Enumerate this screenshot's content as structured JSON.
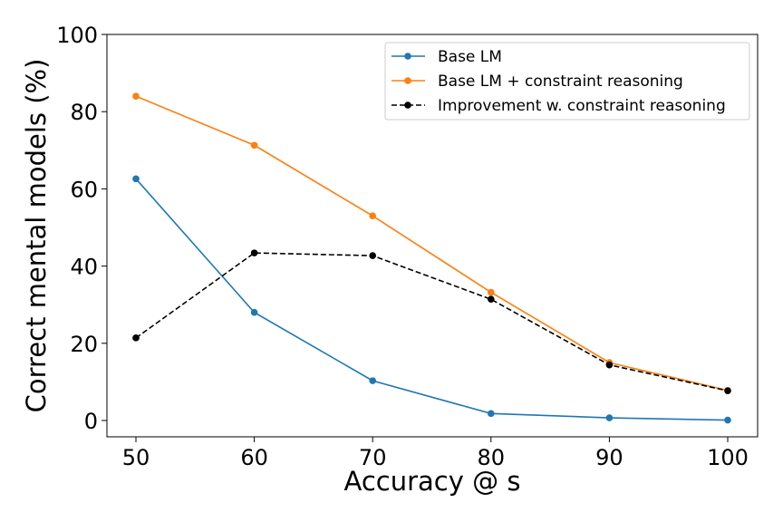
{
  "chart_data": {
    "type": "line",
    "title": "",
    "xlabel": "Accuracy @ s",
    "ylabel": "Correct mental models (%)",
    "x": [
      50,
      60,
      70,
      80,
      90,
      100
    ],
    "xticks": [
      "50",
      "60",
      "70",
      "80",
      "90",
      "100"
    ],
    "yticks": [
      "0",
      "20",
      "40",
      "60",
      "80",
      "100"
    ],
    "ylim": [
      0,
      100
    ],
    "grid": false,
    "legend_position": "top-right",
    "series": [
      {
        "name": "Base LM",
        "color": "#1f77b4",
        "style": "solid",
        "marker": "circle",
        "values": [
          62.6,
          28.0,
          10.3,
          1.8,
          0.7,
          0.1
        ]
      },
      {
        "name": "Base LM + constraint reasoning",
        "color": "#ff7f0e",
        "style": "solid",
        "marker": "circle",
        "values": [
          84.0,
          71.3,
          53.0,
          33.2,
          15.0,
          7.8
        ]
      },
      {
        "name": "Improvement w. constraint reasoning",
        "color": "#000000",
        "style": "dashed",
        "marker": "circle",
        "values": [
          21.4,
          43.4,
          42.7,
          31.4,
          14.4,
          7.7
        ]
      }
    ]
  }
}
